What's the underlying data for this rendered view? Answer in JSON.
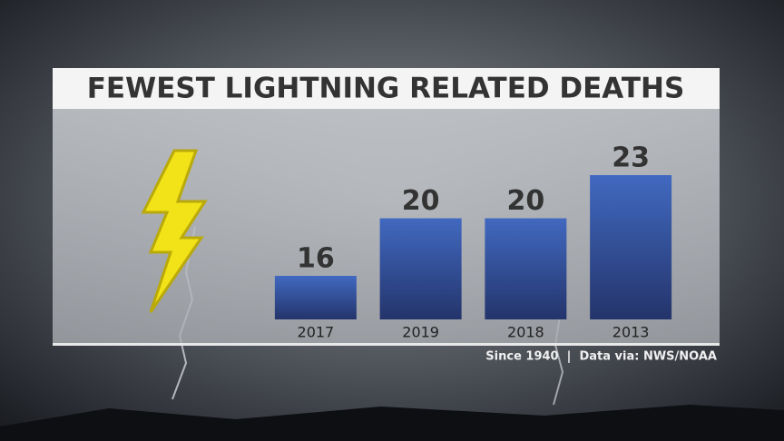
{
  "chart_data": {
    "type": "bar",
    "title": "FEWEST LIGHTNING RELATED DEATHS",
    "categories": [
      "2017",
      "2019",
      "2018",
      "2013"
    ],
    "values": [
      16,
      20,
      20,
      23
    ],
    "color": "#4169c0",
    "note": "Since 1940  |  Data via: NWS/NOAA"
  }
}
